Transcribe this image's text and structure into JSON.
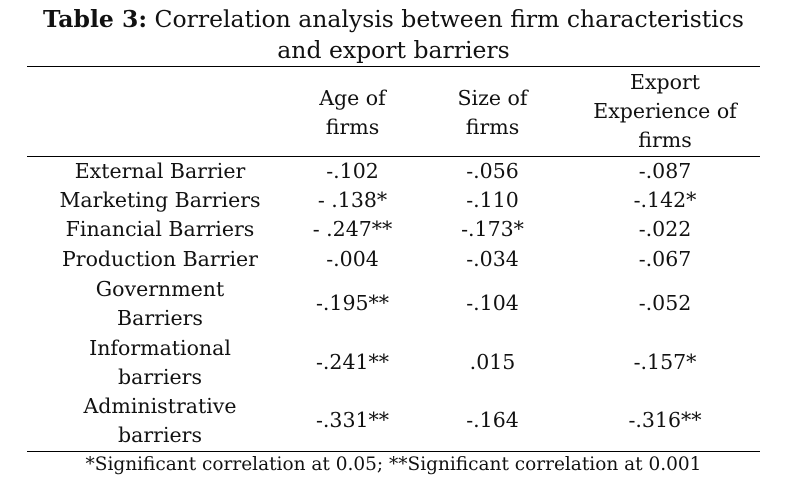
{
  "title": {
    "label": "Table 3:",
    "text_line1": " Correlation analysis between firm characteristics",
    "text_line2": "and export barriers"
  },
  "headers": {
    "col1": [
      "Age of",
      "firms"
    ],
    "col2": [
      "Size of",
      "firms"
    ],
    "col3": [
      "Export",
      "Experience of",
      "firms"
    ]
  },
  "rows": [
    {
      "label": [
        "External Barrier"
      ],
      "age": "-.102",
      "size": "-.056",
      "export": "-.087"
    },
    {
      "label": [
        "Marketing Barriers"
      ],
      "age": "- .138*",
      "size": "-.110",
      "export": "-.142*"
    },
    {
      "label": [
        "Financial Barriers"
      ],
      "age": "- .247**",
      "size": "-.173*",
      "export": "-.022"
    },
    {
      "label": [
        "Production Barrier"
      ],
      "age": "-.004",
      "size": "-.034",
      "export": "-.067"
    },
    {
      "label": [
        "Government",
        "Barriers"
      ],
      "age": "-.195**",
      "size": "-.104",
      "export": "-.052"
    },
    {
      "label": [
        "Informational",
        "barriers"
      ],
      "age": "-.241**",
      "size": ".015",
      "export": "-.157*"
    },
    {
      "label": [
        "Administrative",
        "barriers"
      ],
      "age": "-.331**",
      "size": "-.164",
      "export": "-.316**"
    }
  ],
  "footnote": "*Significant correlation at 0.05; **Significant correlation at 0.001"
}
